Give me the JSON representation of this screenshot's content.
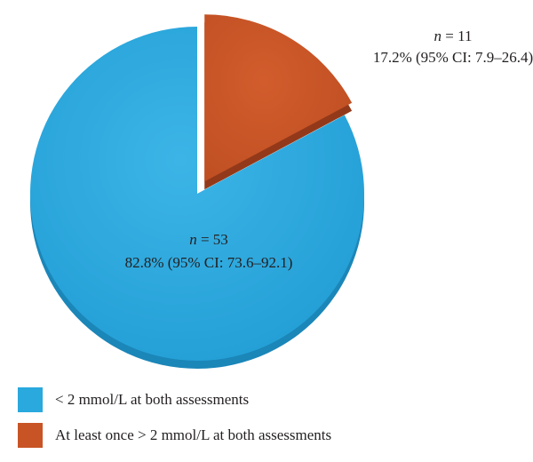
{
  "chart_data": {
    "type": "pie",
    "slices": [
      {
        "label": "< 2 mmol/L at both assessments",
        "value": 82.8,
        "n_prefix": "n",
        "n_text": " = 53",
        "pct_text": "82.8% (95% CI: 73.6–92.1)",
        "color": "#29a9dd",
        "color_dark": "#1b86b8",
        "exploded": false
      },
      {
        "label": "At least once > 2 mmol/L at both assessments",
        "value": 17.2,
        "n_prefix": "n",
        "n_text": " = 11",
        "pct_text": "17.2% (95% CI: 7.9–26.4)",
        "color": "#c85426",
        "color_dark": "#93391a",
        "exploded": true
      }
    ],
    "legend": {
      "position": "bottom-left",
      "items": [
        {
          "label": "< 2 mmol/L at both assessments",
          "color": "#29a9dd"
        },
        {
          "label": "At least once > 2 mmol/L at both assessments",
          "color": "#c85426"
        }
      ]
    }
  }
}
